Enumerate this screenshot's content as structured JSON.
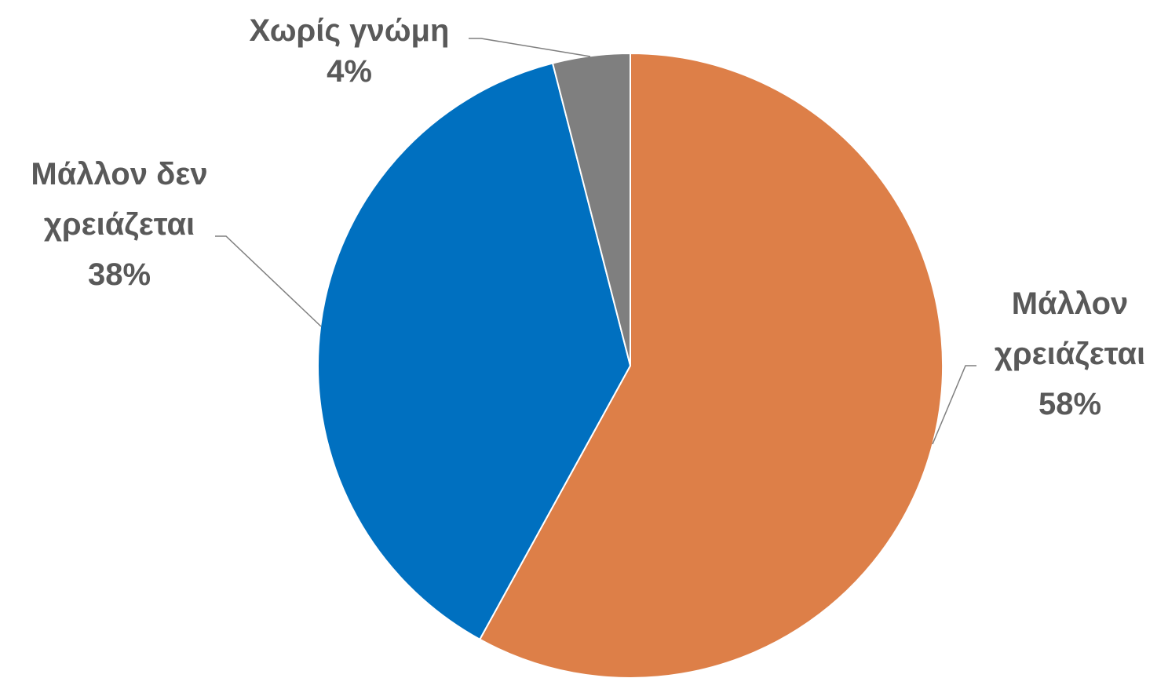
{
  "chart_data": {
    "type": "pie",
    "title": "",
    "categories": [
      "Μάλλον χρειάζεται",
      "Μάλλον δεν χρειάζεται",
      "Χωρίς γνώμη"
    ],
    "values": [
      58,
      38,
      4
    ],
    "unit": "%",
    "colors": [
      "#DD7F48",
      "#0070C0",
      "#7F7F7F"
    ],
    "labels": [
      {
        "lines": [
          "Μάλλον",
          "χρειάζεται",
          "58%"
        ]
      },
      {
        "lines": [
          "Μάλλον δεν",
          "χρειάζεται",
          "38%"
        ]
      },
      {
        "lines": [
          "Χωρίς γνώμη",
          "4%"
        ]
      }
    ],
    "start_angle": "12 o'clock",
    "direction": "clockwise",
    "legend": "none",
    "label_color": "#595959",
    "leader_line_color": "#7F7F7F"
  }
}
